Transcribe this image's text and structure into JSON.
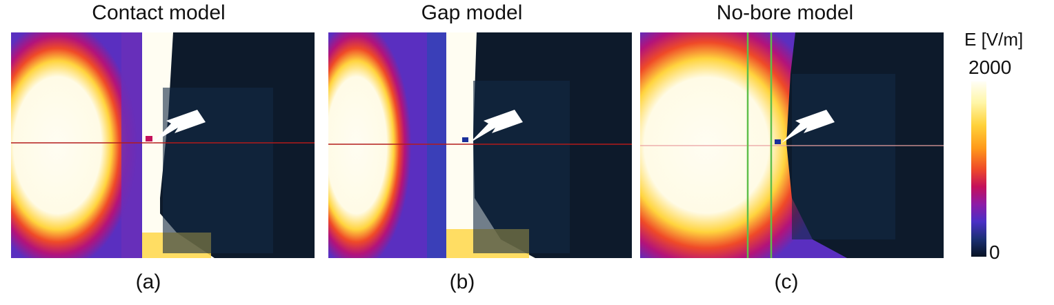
{
  "panels": [
    {
      "title": "Contact model",
      "label": "(a)"
    },
    {
      "title": "Gap model",
      "label": "(b)"
    },
    {
      "title": "No-bore model",
      "label": "(c)"
    }
  ],
  "colorbar": {
    "title": "E [V/m]",
    "max": "2000",
    "min": "0"
  },
  "colors": {
    "background": "#0d1a2b",
    "field_high": "#fffdf2",
    "guide_line": "#b31b1b",
    "bore_line": "#5fbf4a"
  }
}
